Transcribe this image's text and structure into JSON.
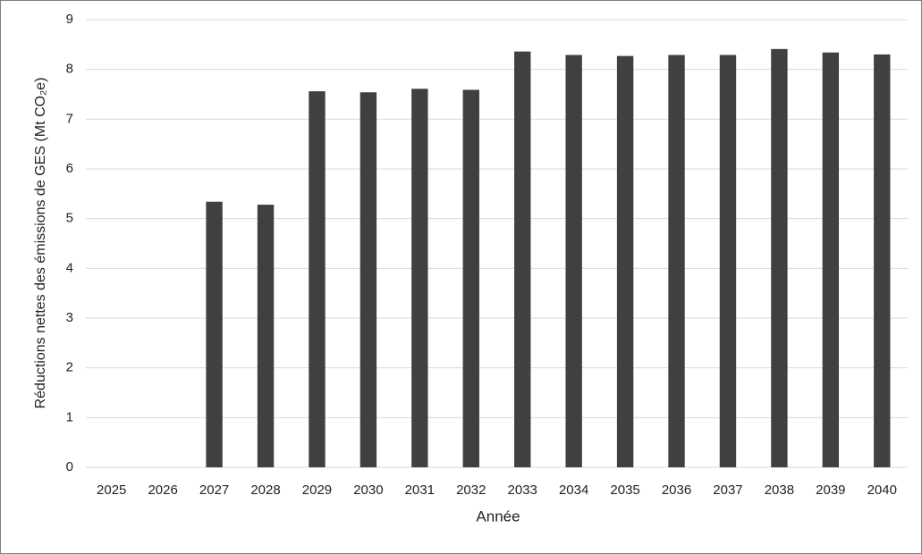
{
  "chart_data": {
    "type": "bar",
    "xlabel": "Année",
    "ylabel": "Réductions nettes des émissions de GES (Mt CO₂e)",
    "categories": [
      "2025",
      "2026",
      "2027",
      "2028",
      "2029",
      "2030",
      "2031",
      "2032",
      "2033",
      "2034",
      "2035",
      "2036",
      "2037",
      "2038",
      "2039",
      "2040"
    ],
    "values": [
      0,
      0,
      5.34,
      5.28,
      7.56,
      7.54,
      7.61,
      7.59,
      8.36,
      8.29,
      8.27,
      8.29,
      8.29,
      8.41,
      8.34,
      8.3
    ],
    "color": "#404040",
    "ylim": [
      0,
      9
    ],
    "yticks": [
      0,
      1,
      2,
      3,
      4,
      5,
      6,
      7,
      8,
      9
    ],
    "grid": true
  }
}
